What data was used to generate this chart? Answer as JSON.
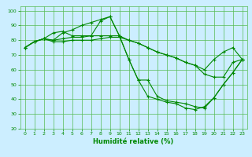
{
  "xlabel": "Humidité relative (%)",
  "bg_color": "#cceeff",
  "grid_color": "#55bb55",
  "line_color": "#008800",
  "marker": "+",
  "xlim": [
    -0.5,
    23.5
  ],
  "ylim": [
    20,
    103
  ],
  "xticks": [
    0,
    1,
    2,
    3,
    4,
    5,
    6,
    7,
    8,
    9,
    10,
    11,
    12,
    13,
    14,
    15,
    16,
    17,
    18,
    19,
    20,
    21,
    22,
    23
  ],
  "yticks": [
    20,
    30,
    40,
    50,
    60,
    70,
    80,
    90,
    100
  ],
  "series": [
    [
      75,
      79,
      81,
      80,
      85,
      87,
      90,
      92,
      94,
      96,
      83,
      67,
      53,
      42,
      40,
      38,
      37,
      34,
      33,
      35,
      41,
      50,
      58,
      67
    ],
    [
      75,
      79,
      81,
      80,
      81,
      82,
      82,
      83,
      93,
      96,
      83,
      67,
      53,
      53,
      42,
      39,
      38,
      37,
      35,
      34,
      41,
      50,
      58,
      67
    ],
    [
      75,
      79,
      81,
      85,
      86,
      83,
      83,
      83,
      83,
      83,
      83,
      80,
      78,
      75,
      72,
      70,
      68,
      65,
      63,
      57,
      55,
      55,
      65,
      67
    ],
    [
      75,
      79,
      81,
      79,
      79,
      80,
      80,
      80,
      81,
      82,
      82,
      80,
      78,
      75,
      72,
      70,
      68,
      65,
      63,
      60,
      67,
      72,
      75,
      67
    ]
  ],
  "xlabel_fontsize": 6,
  "tick_fontsize": 4.5,
  "linewidth": 0.8,
  "markersize": 3,
  "markeredgewidth": 0.8
}
